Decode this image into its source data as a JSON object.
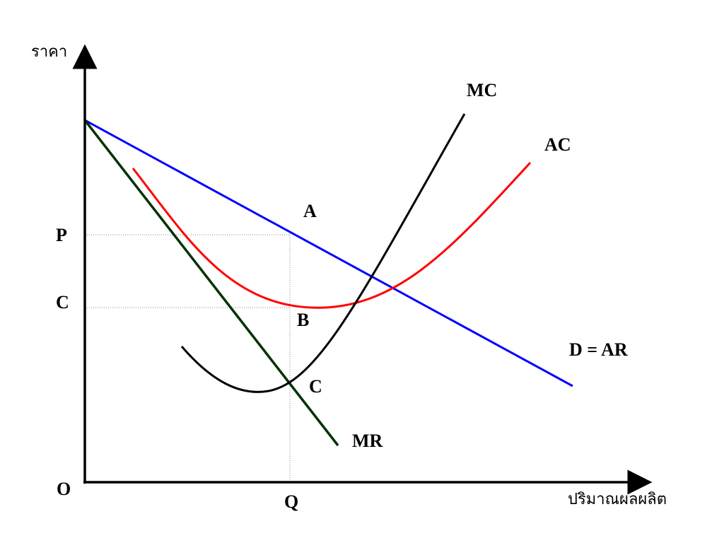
{
  "axes": {
    "y_title": "ราคา",
    "x_title": "ปริมาณผลผลิต",
    "origin": "O"
  },
  "ticks": {
    "price_p": "P",
    "cost_c": "C",
    "quantity_q": "Q"
  },
  "curves": {
    "mc": {
      "label": "MC",
      "color": "#000000"
    },
    "ac": {
      "label": "AC",
      "color": "#ff0000"
    },
    "demand": {
      "label": "D = AR",
      "color": "#0000ff"
    },
    "mr": {
      "label": "MR",
      "color": "#003300"
    }
  },
  "points": {
    "a": "A",
    "b": "B",
    "c": "C"
  },
  "guides": {
    "color": "#888888"
  }
}
